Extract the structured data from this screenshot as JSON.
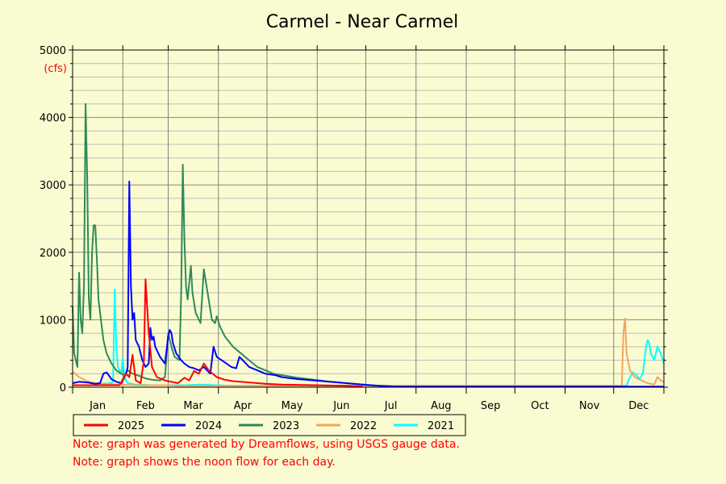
{
  "chart_data": {
    "type": "line",
    "title": "Carmel - Near Carmel",
    "ylabel": "(cfs)",
    "ylim": [
      0,
      5000
    ],
    "xlim": [
      1,
      366
    ],
    "yticks": [
      0,
      1000,
      2000,
      3000,
      4000,
      5000
    ],
    "months": [
      "Jan",
      "Feb",
      "Mar",
      "Apr",
      "May",
      "Jun",
      "Jul",
      "Aug",
      "Sep",
      "Oct",
      "Nov",
      "Dec"
    ],
    "x_unit": "day of year",
    "grid": true,
    "legend_placement": "bottom-left",
    "series": [
      {
        "name": "2025",
        "color": "#ff0000",
        "points": [
          [
            1,
            30
          ],
          [
            15,
            30
          ],
          [
            30,
            30
          ],
          [
            34,
            200
          ],
          [
            36,
            150
          ],
          [
            38,
            480
          ],
          [
            40,
            100
          ],
          [
            43,
            60
          ],
          [
            45,
            400
          ],
          [
            46,
            1600
          ],
          [
            48,
            800
          ],
          [
            50,
            300
          ],
          [
            53,
            150
          ],
          [
            58,
            100
          ],
          [
            62,
            80
          ],
          [
            66,
            60
          ],
          [
            70,
            140
          ],
          [
            73,
            100
          ],
          [
            76,
            240
          ],
          [
            79,
            200
          ],
          [
            82,
            350
          ],
          [
            85,
            250
          ],
          [
            90,
            150
          ],
          [
            95,
            110
          ],
          [
            100,
            90
          ],
          [
            110,
            70
          ],
          [
            120,
            50
          ],
          [
            130,
            40
          ],
          [
            150,
            30
          ],
          [
            170,
            20
          ],
          [
            180,
            10
          ]
        ]
      },
      {
        "name": "2024",
        "color": "#0000ff",
        "points": [
          [
            1,
            60
          ],
          [
            5,
            80
          ],
          [
            10,
            70
          ],
          [
            15,
            50
          ],
          [
            18,
            60
          ],
          [
            20,
            200
          ],
          [
            22,
            220
          ],
          [
            25,
            120
          ],
          [
            28,
            80
          ],
          [
            31,
            60
          ],
          [
            32,
            100
          ],
          [
            34,
            200
          ],
          [
            35,
            300
          ],
          [
            36,
            3050
          ],
          [
            37,
            1500
          ],
          [
            38,
            1000
          ],
          [
            39,
            1100
          ],
          [
            40,
            700
          ],
          [
            42,
            600
          ],
          [
            44,
            400
          ],
          [
            46,
            300
          ],
          [
            48,
            350
          ],
          [
            49,
            880
          ],
          [
            50,
            700
          ],
          [
            51,
            750
          ],
          [
            52,
            600
          ],
          [
            55,
            450
          ],
          [
            58,
            350
          ],
          [
            60,
            750
          ],
          [
            61,
            850
          ],
          [
            62,
            800
          ],
          [
            63,
            650
          ],
          [
            65,
            500
          ],
          [
            68,
            400
          ],
          [
            70,
            350
          ],
          [
            73,
            300
          ],
          [
            76,
            280
          ],
          [
            79,
            250
          ],
          [
            82,
            300
          ],
          [
            84,
            250
          ],
          [
            86,
            200
          ],
          [
            88,
            600
          ],
          [
            90,
            450
          ],
          [
            93,
            400
          ],
          [
            96,
            350
          ],
          [
            99,
            300
          ],
          [
            102,
            280
          ],
          [
            104,
            450
          ],
          [
            106,
            400
          ],
          [
            110,
            300
          ],
          [
            115,
            250
          ],
          [
            120,
            200
          ],
          [
            126,
            180
          ],
          [
            130,
            150
          ],
          [
            140,
            120
          ],
          [
            150,
            100
          ],
          [
            160,
            80
          ],
          [
            170,
            60
          ],
          [
            180,
            40
          ],
          [
            190,
            20
          ],
          [
            200,
            10
          ],
          [
            366,
            10
          ]
        ]
      },
      {
        "name": "2023",
        "color": "#2e8b57",
        "points": [
          [
            1,
            1200
          ],
          [
            2,
            500
          ],
          [
            4,
            300
          ],
          [
            5,
            1700
          ],
          [
            6,
            1000
          ],
          [
            7,
            800
          ],
          [
            8,
            1500
          ],
          [
            9,
            4200
          ],
          [
            10,
            3100
          ],
          [
            11,
            1300
          ],
          [
            12,
            1000
          ],
          [
            13,
            2000
          ],
          [
            14,
            2400
          ],
          [
            15,
            2400
          ],
          [
            16,
            1900
          ],
          [
            17,
            1300
          ],
          [
            18,
            1100
          ],
          [
            20,
            700
          ],
          [
            22,
            500
          ],
          [
            25,
            350
          ],
          [
            28,
            250
          ],
          [
            31,
            200
          ],
          [
            33,
            180
          ],
          [
            35,
            250
          ],
          [
            38,
            200
          ],
          [
            42,
            170
          ],
          [
            46,
            130
          ],
          [
            50,
            110
          ],
          [
            55,
            100
          ],
          [
            58,
            150
          ],
          [
            60,
            800
          ],
          [
            62,
            600
          ],
          [
            64,
            450
          ],
          [
            67,
            400
          ],
          [
            68,
            1400
          ],
          [
            69,
            3300
          ],
          [
            70,
            2200
          ],
          [
            71,
            1500
          ],
          [
            72,
            1300
          ],
          [
            74,
            1800
          ],
          [
            75,
            1400
          ],
          [
            77,
            1100
          ],
          [
            80,
            950
          ],
          [
            82,
            1750
          ],
          [
            83,
            1600
          ],
          [
            85,
            1300
          ],
          [
            87,
            1000
          ],
          [
            89,
            950
          ],
          [
            90,
            1050
          ],
          [
            92,
            900
          ],
          [
            95,
            750
          ],
          [
            100,
            600
          ],
          [
            105,
            500
          ],
          [
            110,
            400
          ],
          [
            115,
            300
          ],
          [
            120,
            250
          ],
          [
            125,
            200
          ],
          [
            130,
            180
          ],
          [
            140,
            140
          ],
          [
            150,
            110
          ],
          [
            160,
            80
          ],
          [
            170,
            60
          ],
          [
            180,
            40
          ],
          [
            190,
            20
          ],
          [
            200,
            10
          ]
        ]
      },
      {
        "name": "2022",
        "color": "#f4a460",
        "points": [
          [
            1,
            230
          ],
          [
            5,
            150
          ],
          [
            10,
            90
          ],
          [
            15,
            60
          ],
          [
            20,
            50
          ],
          [
            30,
            40
          ],
          [
            40,
            30
          ],
          [
            50,
            30
          ],
          [
            60,
            30
          ],
          [
            65,
            20
          ],
          [
            340,
            20
          ],
          [
            341,
            800
          ],
          [
            342,
            1020
          ],
          [
            343,
            500
          ],
          [
            345,
            250
          ],
          [
            348,
            150
          ],
          [
            352,
            100
          ],
          [
            356,
            60
          ],
          [
            360,
            40
          ],
          [
            362,
            150
          ],
          [
            364,
            100
          ],
          [
            366,
            80
          ]
        ]
      },
      {
        "name": "2021",
        "color": "#00ffff",
        "points": [
          [
            20,
            60
          ],
          [
            23,
            50
          ],
          [
            26,
            80
          ],
          [
            27,
            1450
          ],
          [
            28,
            600
          ],
          [
            29,
            300
          ],
          [
            30,
            250
          ],
          [
            31,
            200
          ],
          [
            32,
            420
          ],
          [
            33,
            150
          ],
          [
            35,
            60
          ],
          [
            40,
            40
          ],
          [
            50,
            30
          ],
          [
            60,
            30
          ],
          [
            70,
            30
          ],
          [
            80,
            40
          ],
          [
            90,
            30
          ],
          [
            100,
            20
          ],
          [
            343,
            20
          ],
          [
            345,
            150
          ],
          [
            347,
            220
          ],
          [
            349,
            180
          ],
          [
            351,
            120
          ],
          [
            353,
            200
          ],
          [
            355,
            600
          ],
          [
            356,
            700
          ],
          [
            357,
            650
          ],
          [
            358,
            500
          ],
          [
            360,
            400
          ],
          [
            362,
            600
          ],
          [
            364,
            500
          ],
          [
            366,
            350
          ]
        ]
      }
    ]
  },
  "notes": {
    "line1": "Note: graph was generated by Dreamflows, using USGS gauge data.",
    "line2": "Note: graph shows the noon flow for each day."
  },
  "colors": {
    "background": "#fbfbd1",
    "grid": "#808080",
    "note": "#ff0000"
  }
}
